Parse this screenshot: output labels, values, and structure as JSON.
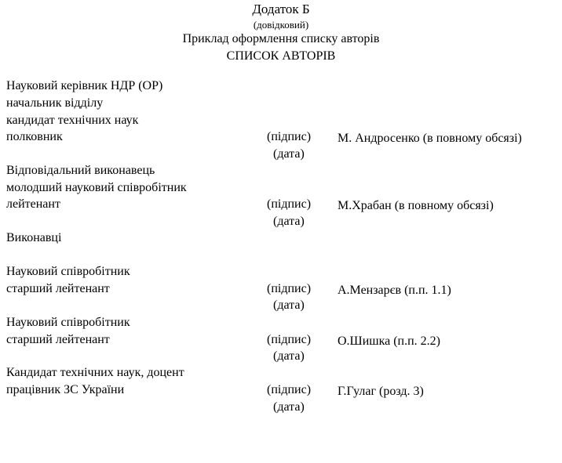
{
  "header": {
    "title": "Додаток Б",
    "subtitle": "(довідковий)",
    "example": "Приклад оформлення списку авторів",
    "list_title": "СПИСОК АВТОРІВ"
  },
  "signature_label": "(підпис)",
  "date_label": "(дата)",
  "entries": [
    {
      "lines": [
        "Науковий керівник НДР (ОР)",
        "начальник відділу",
        "кандидат технічних наук",
        "полковник"
      ],
      "name": "М. Андросенко (в повному обсязі)"
    },
    {
      "lines": [
        "Відповідальний виконавець",
        "молодший науковий співробітник",
        "лейтенант"
      ],
      "name": "М.Храбан (в повному обсязі)"
    },
    {
      "lines": [
        "Виконавці"
      ]
    },
    {
      "lines": [
        "Науковий співробітник",
        "старший лейтенант"
      ],
      "name": "А.Мензарєв (п.п. 1.1)"
    },
    {
      "lines": [
        "Науковий співробітник",
        "старший лейтенант"
      ],
      "name": "О.Шишка (п.п. 2.2)"
    },
    {
      "lines": [
        "Кандидат технічних наук, доцент",
        "працівник ЗС України"
      ],
      "name": "Г.Гулаг (розд. 3)"
    }
  ]
}
